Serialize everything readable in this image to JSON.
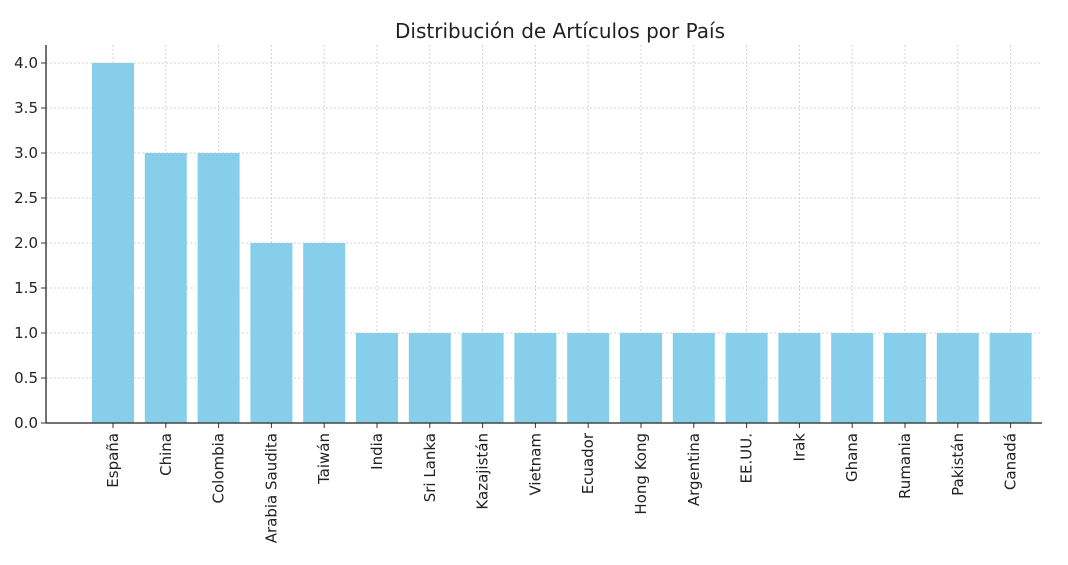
{
  "chart_data": {
    "type": "bar",
    "title": "Distribución de Artículos por País",
    "xlabel": "",
    "ylabel": "",
    "categories": [
      "España",
      "China",
      "Colombia",
      "Arabia Saudita",
      "Taiwán",
      "India",
      "Sri Lanka",
      "Kazajistán",
      "Vietnam",
      "Ecuador",
      "Hong Kong",
      "Argentina",
      "EE.UU.",
      "Irak",
      "Ghana",
      "Rumania",
      "Pakistán",
      "Canadá"
    ],
    "values": [
      4,
      3,
      3,
      2,
      2,
      1,
      1,
      1,
      1,
      1,
      1,
      1,
      1,
      1,
      1,
      1,
      1,
      1
    ],
    "ylim": [
      0,
      4.2
    ],
    "yticks": [
      "0.0",
      "0.5",
      "1.0",
      "1.5",
      "2.0",
      "2.5",
      "3.0",
      "3.5",
      "4.0"
    ],
    "grid": true,
    "bar_color": "#87ceeb"
  }
}
